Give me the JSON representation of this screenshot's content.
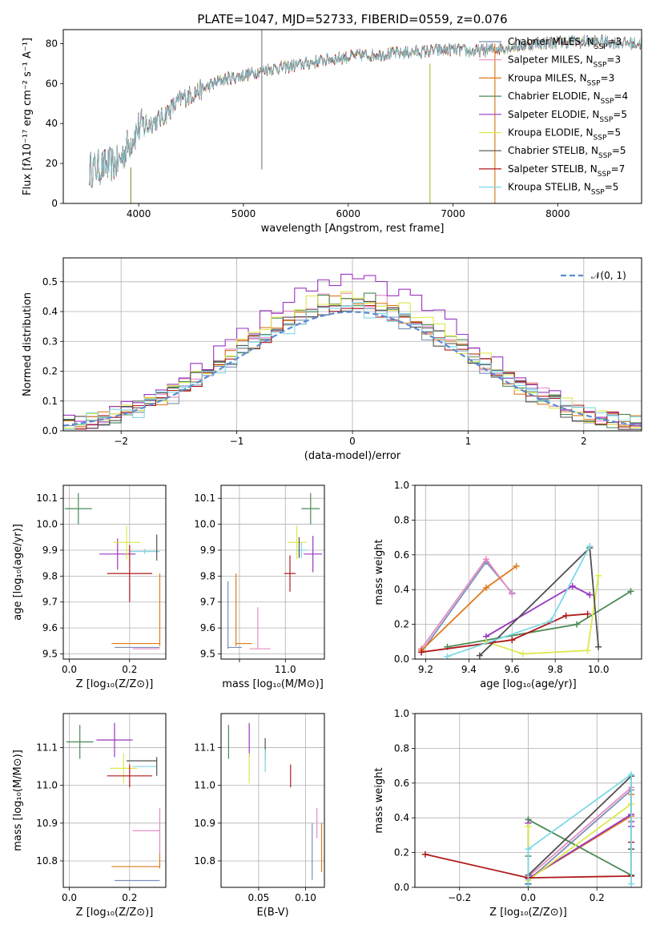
{
  "figure": {
    "title": "PLATE=1047, MJD=52733, FIBERID=0559, z=0.076"
  },
  "colors": {
    "Chabrier MILES": "#7a8fb8",
    "Salpeter MILES": "#e58cc4",
    "Kroupa MILES": "#e07b1c",
    "Chabrier ELODIE": "#4a8a55",
    "Salpeter ELODIE": "#9b35c0",
    "Kroupa ELODIE": "#dde84a",
    "Chabrier STELIB": "#505050",
    "Salpeter STELIB": "#b01a1a",
    "Kroupa STELIB": "#7dd8e6",
    "spec_Chabrier MILES": "#8a93a8",
    "normal": "#5b8bd6",
    "grid": "#b0b0b0"
  },
  "chart_data": [
    {
      "id": "spectrum",
      "type": "line",
      "title": "PLATE=1047, MJD=52733, FIBERID=0559, z=0.076",
      "xlabel": "wavelength [Angstrom, rest frame]",
      "ylabel": "Flux [fλ10⁻¹⁷ erg cm⁻² s⁻¹ A⁻¹]",
      "xlim": [
        3280,
        8800
      ],
      "ylim": [
        0,
        87
      ],
      "xticks": [
        4000,
        5000,
        6000,
        7000,
        8000
      ],
      "yticks": [
        0,
        20,
        40,
        60,
        80
      ],
      "grid": false,
      "legend": "upper right",
      "continuum": [
        [
          3530,
          17
        ],
        [
          3800,
          20
        ],
        [
          3930,
          32
        ],
        [
          4000,
          38
        ],
        [
          4200,
          42
        ],
        [
          4400,
          52
        ],
        [
          4600,
          57
        ],
        [
          4800,
          62
        ],
        [
          5000,
          64
        ],
        [
          5200,
          67
        ],
        [
          5500,
          69
        ],
        [
          5800,
          72
        ],
        [
          6100,
          74
        ],
        [
          6400,
          75
        ],
        [
          6700,
          76
        ],
        [
          7000,
          77
        ],
        [
          7200,
          76
        ],
        [
          7500,
          78
        ],
        [
          7800,
          80
        ],
        [
          8100,
          81
        ],
        [
          8400,
          81
        ],
        [
          8800,
          80
        ]
      ],
      "series": [
        {
          "name": "Chabrier MILES, N_SSP=3",
          "label_main": "Chabrier MILES, N",
          "label_sub": "SSP",
          "label_tail": "=3"
        },
        {
          "name": "Salpeter MILES, N_SSP=3",
          "label_main": "Salpeter MILES, N",
          "label_sub": "SSP",
          "label_tail": "=3"
        },
        {
          "name": "Kroupa MILES, N_SSP=3",
          "label_main": "Kroupa MILES, N",
          "label_sub": "SSP",
          "label_tail": "=3"
        },
        {
          "name": "Chabrier ELODIE, N_SSP=4",
          "label_main": "Chabrier ELODIE, N",
          "label_sub": "SSP",
          "label_tail": "=4"
        },
        {
          "name": "Salpeter ELODIE, N_SSP=5",
          "label_main": "Salpeter ELODIE, N",
          "label_sub": "SSP",
          "label_tail": "=5"
        },
        {
          "name": "Kroupa ELODIE, N_SSP=5",
          "label_main": "Kroupa ELODIE, N",
          "label_sub": "SSP",
          "label_tail": "=5"
        },
        {
          "name": "Chabrier STELIB, N_SSP=5",
          "label_main": "Chabrier STELIB, N",
          "label_sub": "SSP",
          "label_tail": "=5"
        },
        {
          "name": "Salpeter STELIB, N_SSP=7",
          "label_main": "Salpeter STELIB, N",
          "label_sub": "SSP",
          "label_tail": "=7"
        },
        {
          "name": "Kroupa STELIB, N_SSP=5",
          "label_main": "Kroupa STELIB, N",
          "label_sub": "SSP",
          "label_tail": "=5"
        }
      ],
      "spikes": [
        {
          "x": 3925,
          "y0": 0,
          "y1": 18,
          "color": "#8a9a3a"
        },
        {
          "x": 5175,
          "y0": 17,
          "y1": 87,
          "color": "#888888"
        },
        {
          "x": 6780,
          "y0": 0,
          "y1": 70,
          "color": "#b0c040"
        },
        {
          "x": 7400,
          "y0": 0,
          "y1": 80,
          "color": "#e07b1c"
        }
      ]
    },
    {
      "id": "residuals",
      "type": "line",
      "xlabel": "(data-model)/error",
      "ylabel": "Normed distribution",
      "xlim": [
        -2.5,
        2.5
      ],
      "ylim": [
        0,
        0.58
      ],
      "xticks": [
        -2,
        -1,
        0,
        1,
        2
      ],
      "yticks": [
        0.0,
        0.1,
        0.2,
        0.3,
        0.4,
        0.5
      ],
      "grid": true,
      "legend": "upper right",
      "normal_label": "𝒩(0, 1)",
      "bin_width": 0.1,
      "series_peaks": [
        {
          "name": "Chabrier MILES",
          "peak": 0.44
        },
        {
          "name": "Salpeter MILES",
          "peak": 0.49
        },
        {
          "name": "Kroupa MILES",
          "peak": 0.47
        },
        {
          "name": "Chabrier ELODIE",
          "peak": 0.48
        },
        {
          "name": "Salpeter ELODIE",
          "peak": 0.55
        },
        {
          "name": "Kroupa ELODIE",
          "peak": 0.49
        },
        {
          "name": "Chabrier STELIB",
          "peak": 0.45
        },
        {
          "name": "Salpeter STELIB",
          "peak": 0.46
        },
        {
          "name": "Kroupa STELIB",
          "peak": 0.44
        }
      ]
    },
    {
      "id": "age_vs_Z",
      "type": "scatter",
      "xlabel": "Z [log₁₀(Z/Z⊙)]",
      "ylabel": "age  [log₁₀(age/yr)]",
      "xlim": [
        -0.02,
        0.32
      ],
      "ylim": [
        9.48,
        10.15
      ],
      "xticks": [
        0.0,
        0.2
      ],
      "yticks": [
        9.5,
        9.6,
        9.7,
        9.8,
        9.9,
        10.0,
        10.1
      ],
      "grid": true,
      "points": [
        {
          "series": "Chabrier ELODIE",
          "x": 0.03,
          "y": 10.06,
          "xerr": 0.045,
          "yerr": 0.06
        },
        {
          "series": "Salpeter ELODIE",
          "x": 0.16,
          "y": 9.885,
          "xerr": 0.06,
          "yerr": 0.06
        },
        {
          "series": "Kroupa ELODIE",
          "x": 0.19,
          "y": 9.93,
          "xerr": 0.045,
          "yerr": 0.065
        },
        {
          "series": "Kroupa STELIB",
          "x": 0.25,
          "y": 9.895,
          "xerr": 0.05,
          "yerr": 0.01
        },
        {
          "series": "Chabrier STELIB",
          "x": 0.29,
          "y": 9.91,
          "xerr": 0.0,
          "yerr": 0.05
        },
        {
          "series": "Salpeter STELIB",
          "x": 0.2,
          "y": 9.81,
          "xerr": 0.075,
          "yerr": 0.11
        },
        {
          "series": "Kroupa MILES",
          "x": 0.3,
          "y": 9.67,
          "xerr": 0.0,
          "yerr": 0.14
        },
        {
          "series": "Kroupa MILES",
          "x": 0.22,
          "y": 9.54,
          "xerr": 0.08,
          "yerr": 0.0
        },
        {
          "series": "Chabrier MILES",
          "x": 0.225,
          "y": 9.525,
          "xerr": 0.075,
          "yerr": 0.0
        },
        {
          "series": "Salpeter MILES",
          "x": 0.255,
          "y": 9.52,
          "xerr": 0.045,
          "yerr": 0.0
        }
      ]
    },
    {
      "id": "age_vs_mass",
      "type": "scatter",
      "xlabel": "mass [log₁₀(M/M⊙)]",
      "ylabel": "",
      "xlim": [
        10.72,
        11.17
      ],
      "ylim": [
        9.48,
        10.15
      ],
      "xticks": [
        10.8,
        11.0
      ],
      "xticklabels": [
        "",
        "11.0"
      ],
      "yticks": [
        9.5,
        9.6,
        9.7,
        9.8,
        9.9,
        10.0,
        10.1
      ],
      "grid": true,
      "points": [
        {
          "series": "Chabrier ELODIE",
          "x": 11.11,
          "y": 10.06,
          "xerr": 0.04,
          "yerr": 0.06
        },
        {
          "series": "Kroupa ELODIE",
          "x": 11.05,
          "y": 9.93,
          "xerr": 0.04,
          "yerr": 0.065
        },
        {
          "series": "Salpeter ELODIE",
          "x": 11.12,
          "y": 9.885,
          "xerr": 0.04,
          "yerr": 0.07
        },
        {
          "series": "Kroupa STELIB",
          "x": 11.07,
          "y": 9.9,
          "xerr": 0.02,
          "yerr": 0.03
        },
        {
          "series": "Chabrier STELIB",
          "x": 11.06,
          "y": 9.91,
          "xerr": 0.0,
          "yerr": 0.04
        },
        {
          "series": "Salpeter STELIB",
          "x": 11.02,
          "y": 9.81,
          "xerr": 0.025,
          "yerr": 0.07
        },
        {
          "series": "Kroupa MILES",
          "x": 10.785,
          "y": 9.67,
          "xerr": 0.0,
          "yerr": 0.14
        },
        {
          "series": "Kroupa MILES",
          "x": 10.82,
          "y": 9.54,
          "xerr": 0.035,
          "yerr": 0.0
        },
        {
          "series": "Chabrier MILES",
          "x": 10.75,
          "y": 9.65,
          "xerr": 0.0,
          "yerr": 0.13
        },
        {
          "series": "Chabrier MILES",
          "x": 10.78,
          "y": 9.525,
          "xerr": 0.03,
          "yerr": 0.0
        },
        {
          "series": "Salpeter MILES",
          "x": 10.88,
          "y": 9.6,
          "xerr": 0.0,
          "yerr": 0.08
        },
        {
          "series": "Salpeter MILES",
          "x": 10.89,
          "y": 9.52,
          "xerr": 0.045,
          "yerr": 0.0
        }
      ]
    },
    {
      "id": "weight_vs_age",
      "type": "line",
      "xlabel": "age  [log₁₀(age/yr)]",
      "ylabel": "mass weight",
      "xlim": [
        9.15,
        10.2
      ],
      "ylim": [
        0,
        1
      ],
      "xticks": [
        9.2,
        9.4,
        9.6,
        9.8,
        10.0
      ],
      "yticks": [
        0.0,
        0.2,
        0.4,
        0.6,
        0.8,
        1.0
      ],
      "grid": true,
      "series": [
        {
          "name": "Chabrier MILES",
          "x": [
            9.18,
            9.48,
            9.6
          ],
          "y": [
            0.04,
            0.56,
            0.38
          ]
        },
        {
          "name": "Salpeter MILES",
          "x": [
            9.18,
            9.48,
            9.6
          ],
          "y": [
            0.06,
            0.575,
            0.375
          ]
        },
        {
          "name": "Kroupa MILES",
          "x": [
            9.18,
            9.48,
            9.62
          ],
          "y": [
            0.05,
            0.41,
            0.535
          ]
        },
        {
          "name": "Chabrier ELODIE",
          "x": [
            9.3,
            9.9,
            10.15
          ],
          "y": [
            0.07,
            0.2,
            0.39
          ]
        },
        {
          "name": "Salpeter ELODIE",
          "x": [
            9.48,
            9.88,
            9.96
          ],
          "y": [
            0.13,
            0.42,
            0.37
          ]
        },
        {
          "name": "Kroupa ELODIE",
          "x": [
            9.48,
            9.65,
            9.95,
            10.0
          ],
          "y": [
            0.1,
            0.03,
            0.05,
            0.48
          ]
        },
        {
          "name": "Chabrier STELIB",
          "x": [
            9.45,
            9.96,
            10.0
          ],
          "y": [
            0.02,
            0.64,
            0.07
          ]
        },
        {
          "name": "Salpeter STELIB",
          "x": [
            9.18,
            9.6,
            9.85,
            9.95
          ],
          "y": [
            0.04,
            0.11,
            0.25,
            0.26
          ]
        },
        {
          "name": "Kroupa STELIB",
          "x": [
            9.3,
            9.78,
            9.96
          ],
          "y": [
            0.015,
            0.22,
            0.65
          ]
        }
      ]
    },
    {
      "id": "mass_vs_Z",
      "type": "scatter",
      "xlabel": "Z [log₁₀(Z/Z⊙)]",
      "ylabel": "mass [log₁₀(M/M⊙)]",
      "xlim": [
        -0.02,
        0.32
      ],
      "ylim": [
        10.73,
        11.19
      ],
      "xticks": [
        0.0,
        0.2
      ],
      "yticks": [
        10.8,
        10.9,
        11.0,
        11.1
      ],
      "grid": true,
      "points": [
        {
          "series": "Chabrier ELODIE",
          "x": 0.035,
          "y": 11.115,
          "xerr": 0.045,
          "yerr": 0.045
        },
        {
          "series": "Salpeter ELODIE",
          "x": 0.15,
          "y": 11.12,
          "xerr": 0.06,
          "yerr": 0.045
        },
        {
          "series": "Kroupa ELODIE",
          "x": 0.18,
          "y": 11.045,
          "xerr": 0.045,
          "yerr": 0.04
        },
        {
          "series": "Chabrier STELIB",
          "x": 0.24,
          "y": 11.065,
          "xerr": 0.05,
          "yerr": 0.0
        },
        {
          "series": "Kroupa STELIB",
          "x": 0.25,
          "y": 11.05,
          "xerr": 0.04,
          "yerr": 0.0
        },
        {
          "series": "Chabrier STELIB",
          "x": 0.29,
          "y": 11.05,
          "xerr": 0.0,
          "yerr": 0.025
        },
        {
          "series": "Salpeter STELIB",
          "x": 0.2,
          "y": 11.025,
          "xerr": 0.075,
          "yerr": 0.03
        },
        {
          "series": "Salpeter MILES",
          "x": 0.255,
          "y": 10.88,
          "xerr": 0.045,
          "yerr": 0.0
        },
        {
          "series": "Salpeter MILES",
          "x": 0.3,
          "y": 10.88,
          "xerr": 0.0,
          "yerr": 0.06
        },
        {
          "series": "Kroupa MILES",
          "x": 0.22,
          "y": 10.785,
          "xerr": 0.08,
          "yerr": 0.0
        },
        {
          "series": "Kroupa MILES",
          "x": 0.3,
          "y": 10.8,
          "xerr": 0.0,
          "yerr": 0.02
        },
        {
          "series": "Chabrier MILES",
          "x": 0.225,
          "y": 10.748,
          "xerr": 0.075,
          "yerr": 0.0
        }
      ]
    },
    {
      "id": "mass_vs_EBV",
      "type": "scatter",
      "xlabel": "E(B-V)",
      "ylabel": "",
      "xlim": [
        0.01,
        0.12
      ],
      "ylim": [
        10.73,
        11.19
      ],
      "xticks": [
        0.05,
        0.1
      ],
      "yticks": [
        10.8,
        10.9,
        11.0,
        11.1
      ],
      "grid": true,
      "points": [
        {
          "series": "Chabrier ELODIE",
          "x": 0.018,
          "y": 11.115,
          "xerr": 0.0,
          "yerr": 0.045
        },
        {
          "series": "Salpeter ELODIE",
          "x": 0.04,
          "y": 11.12,
          "xerr": 0.0,
          "yerr": 0.045
        },
        {
          "series": "Kroupa ELODIE",
          "x": 0.04,
          "y": 11.045,
          "xerr": 0.0,
          "yerr": 0.04
        },
        {
          "series": "Chabrier STELIB",
          "x": 0.057,
          "y": 11.095,
          "xerr": 0.0,
          "yerr": 0.03
        },
        {
          "series": "Kroupa STELIB",
          "x": 0.057,
          "y": 11.065,
          "xerr": 0.0,
          "yerr": 0.03
        },
        {
          "series": "Salpeter STELIB",
          "x": 0.084,
          "y": 11.025,
          "xerr": 0.0,
          "yerr": 0.03
        },
        {
          "series": "Salpeter MILES",
          "x": 0.112,
          "y": 10.9,
          "xerr": 0.0,
          "yerr": 0.04
        },
        {
          "series": "Chabrier MILES",
          "x": 0.107,
          "y": 10.825,
          "xerr": 0.0,
          "yerr": 0.075
        },
        {
          "series": "Kroupa MILES",
          "x": 0.117,
          "y": 10.835,
          "xerr": 0.0,
          "yerr": 0.065
        }
      ]
    },
    {
      "id": "weight_vs_Z",
      "type": "line",
      "xlabel": "Z [log₁₀(Z/Z⊙)]",
      "ylabel": "mass weight",
      "xlim": [
        -0.33,
        0.33
      ],
      "ylim": [
        0,
        1
      ],
      "xticks": [
        -0.2,
        0.0,
        0.2
      ],
      "yticks": [
        0.0,
        0.2,
        0.4,
        0.6,
        0.8,
        1.0
      ],
      "grid": true,
      "series": [
        {
          "name": "Chabrier MILES",
          "x": [
            0.0,
            0.3,
            0.3
          ],
          "y": [
            0.04,
            0.56,
            0.38
          ]
        },
        {
          "name": "Salpeter MILES",
          "x": [
            0.0,
            0.3,
            0.3
          ],
          "y": [
            0.06,
            0.575,
            0.375
          ]
        },
        {
          "name": "Kroupa MILES",
          "x": [
            0.0,
            0.3,
            0.3
          ],
          "y": [
            0.05,
            0.41,
            0.535
          ]
        },
        {
          "name": "Chabrier ELODIE",
          "x": [
            0.0,
            0.0,
            0.3
          ],
          "y": [
            0.18,
            0.39,
            0.07
          ]
        },
        {
          "name": "Salpeter ELODIE",
          "x": [
            0.0,
            0.0,
            0.3,
            0.3
          ],
          "y": [
            0.37,
            0.05,
            0.42,
            0.35
          ]
        },
        {
          "name": "Kroupa ELODIE",
          "x": [
            0.0,
            0.0,
            0.3
          ],
          "y": [
            0.35,
            0.04,
            0.48
          ]
        },
        {
          "name": "Chabrier STELIB",
          "x": [
            0.0,
            0.0,
            0.3,
            0.3
          ],
          "y": [
            0.02,
            0.07,
            0.64,
            0.22
          ]
        },
        {
          "name": "Salpeter STELIB",
          "x": [
            -0.3,
            0.0,
            0.3,
            0.3
          ],
          "y": [
            0.19,
            0.055,
            0.065,
            0.26
          ]
        },
        {
          "name": "Kroupa STELIB",
          "x": [
            0.0,
            0.0,
            0.3,
            0.3
          ],
          "y": [
            0.015,
            0.22,
            0.65,
            0.02
          ]
        }
      ]
    }
  ]
}
